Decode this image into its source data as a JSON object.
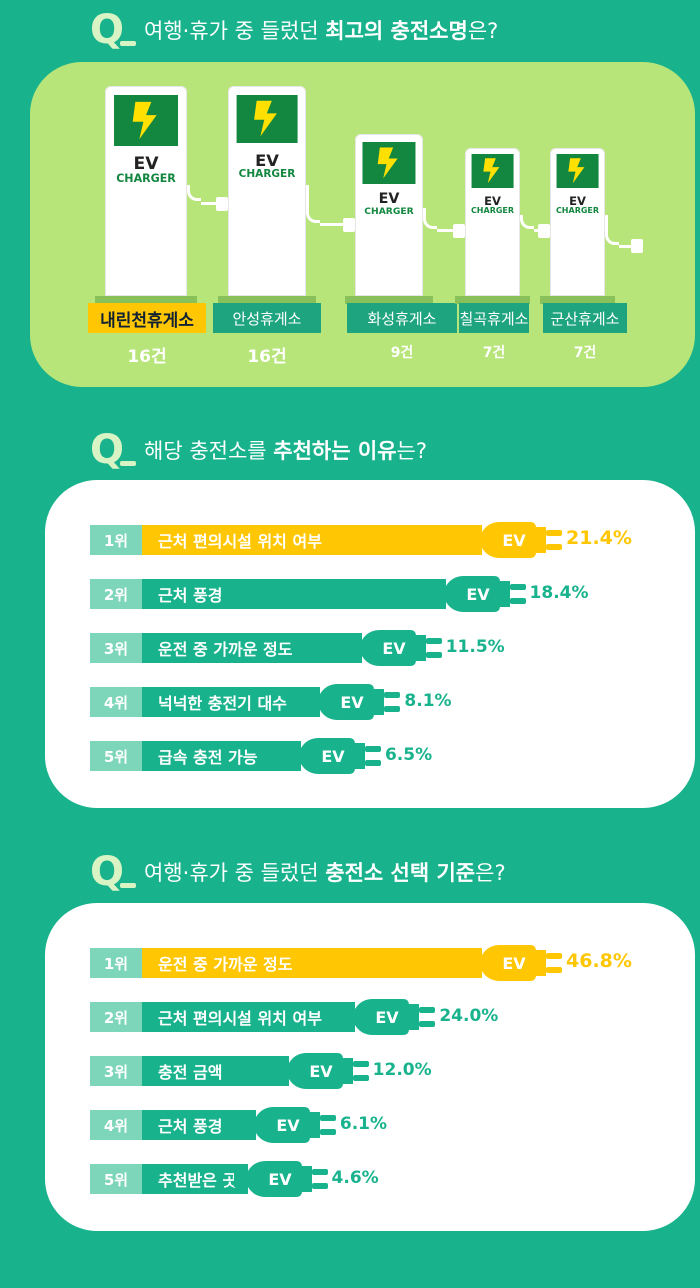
{
  "q1": {
    "q": "Q",
    "prefix": "여행·휴가 중 들렀던 ",
    "bold": "최고의 충전소명",
    "suffix": "은?"
  },
  "q2": {
    "q": "Q",
    "prefix": "해당 충전소를 ",
    "bold": "추천하는 이유",
    "suffix": "는?"
  },
  "q3": {
    "q": "Q",
    "prefix": "여행·휴가 중 들렀던 ",
    "bold": "충전소 선택 기준",
    "suffix": "은?"
  },
  "charger_text": {
    "ev": "EV",
    "charger": "CHARGER",
    "plug": "EV"
  },
  "chart_data": [
    {
      "type": "bar",
      "categories": [
        "내린천휴게소",
        "안성휴게소",
        "화성휴게소",
        "칠곡휴게소",
        "군산휴게소"
      ],
      "values": [
        16,
        16,
        9,
        7,
        7
      ],
      "value_labels": [
        "16건",
        "16건",
        "9건",
        "7건",
        "7건"
      ]
    },
    {
      "type": "bar",
      "ranks": [
        "1위",
        "2위",
        "3위",
        "4위",
        "5위"
      ],
      "categories": [
        "근처 편의시설 위치 여부",
        "근처 풍경",
        "운전 중 가까운 정도",
        "넉넉한 충전기 대수",
        "급속 충전 가능"
      ],
      "values": [
        21.4,
        18.4,
        11.5,
        8.1,
        6.5
      ],
      "value_labels": [
        "21.4%",
        "18.4%",
        "11.5%",
        "8.1%",
        "6.5%"
      ]
    },
    {
      "type": "bar",
      "ranks": [
        "1위",
        "2위",
        "3위",
        "4위",
        "5위"
      ],
      "categories": [
        "운전 중 가까운 정도",
        "근처 편의시설 위치 여부",
        "충전 금액",
        "근처 풍경",
        "추천받은 곳"
      ],
      "values": [
        46.8,
        24.0,
        12.0,
        6.1,
        4.6
      ],
      "value_labels": [
        "46.8%",
        "24.0%",
        "12.0%",
        "6.1%",
        "4.6%"
      ]
    }
  ],
  "colors": {
    "background": "#18b38c",
    "highlight": "#ffc703",
    "panel_green": "#b7e57a",
    "screen": "#13873f"
  }
}
